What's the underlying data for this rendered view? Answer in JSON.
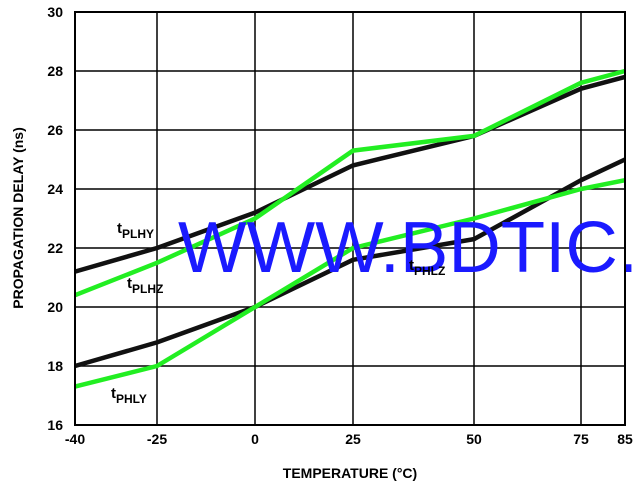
{
  "chart_data": {
    "type": "line",
    "xlabel": "TEMPERATURE (°C)",
    "ylabel": "PROPAGATION DELAY (ns)",
    "xlim": [
      -40,
      85
    ],
    "ylim": [
      16,
      30
    ],
    "x_ticks": [
      "-40",
      "-25",
      "0",
      "25",
      "50",
      "75",
      "85"
    ],
    "x_tick_values": [
      -40,
      -25,
      0,
      25,
      50,
      75,
      85
    ],
    "y_ticks": [
      "16",
      "18",
      "20",
      "22",
      "24",
      "26",
      "28",
      "30"
    ],
    "y_tick_values": [
      16,
      18,
      20,
      22,
      24,
      26,
      28,
      30
    ],
    "grid": true,
    "series": [
      {
        "name": "tPLHY",
        "label_main": "t",
        "label_sub": "PLHY",
        "color": "#111111",
        "x": [
          -40,
          -25,
          0,
          25,
          50,
          75,
          85
        ],
        "y": [
          21.2,
          22.0,
          23.2,
          24.8,
          25.8,
          27.4,
          27.8
        ]
      },
      {
        "name": "tPLHZ",
        "label_main": "t",
        "label_sub": "PLHZ",
        "color": "#22ee22",
        "x": [
          -40,
          -25,
          0,
          25,
          50,
          75,
          85
        ],
        "y": [
          20.4,
          21.5,
          23.0,
          25.3,
          25.8,
          27.6,
          28.0
        ]
      },
      {
        "name": "tPHLZ",
        "label_main": "t",
        "label_sub": "PHLZ",
        "color": "#111111",
        "x": [
          -40,
          -25,
          0,
          25,
          50,
          75,
          85
        ],
        "y": [
          18.0,
          18.8,
          20.0,
          21.6,
          22.3,
          24.3,
          25.0
        ]
      },
      {
        "name": "tPHLY",
        "label_main": "t",
        "label_sub": "PHLY",
        "color": "#22ee22",
        "x": [
          -40,
          -25,
          0,
          25,
          50,
          75,
          85
        ],
        "y": [
          17.3,
          18.0,
          20.0,
          22.0,
          23.0,
          24.0,
          24.3
        ]
      }
    ],
    "watermark": "WWW.BDTIC."
  }
}
